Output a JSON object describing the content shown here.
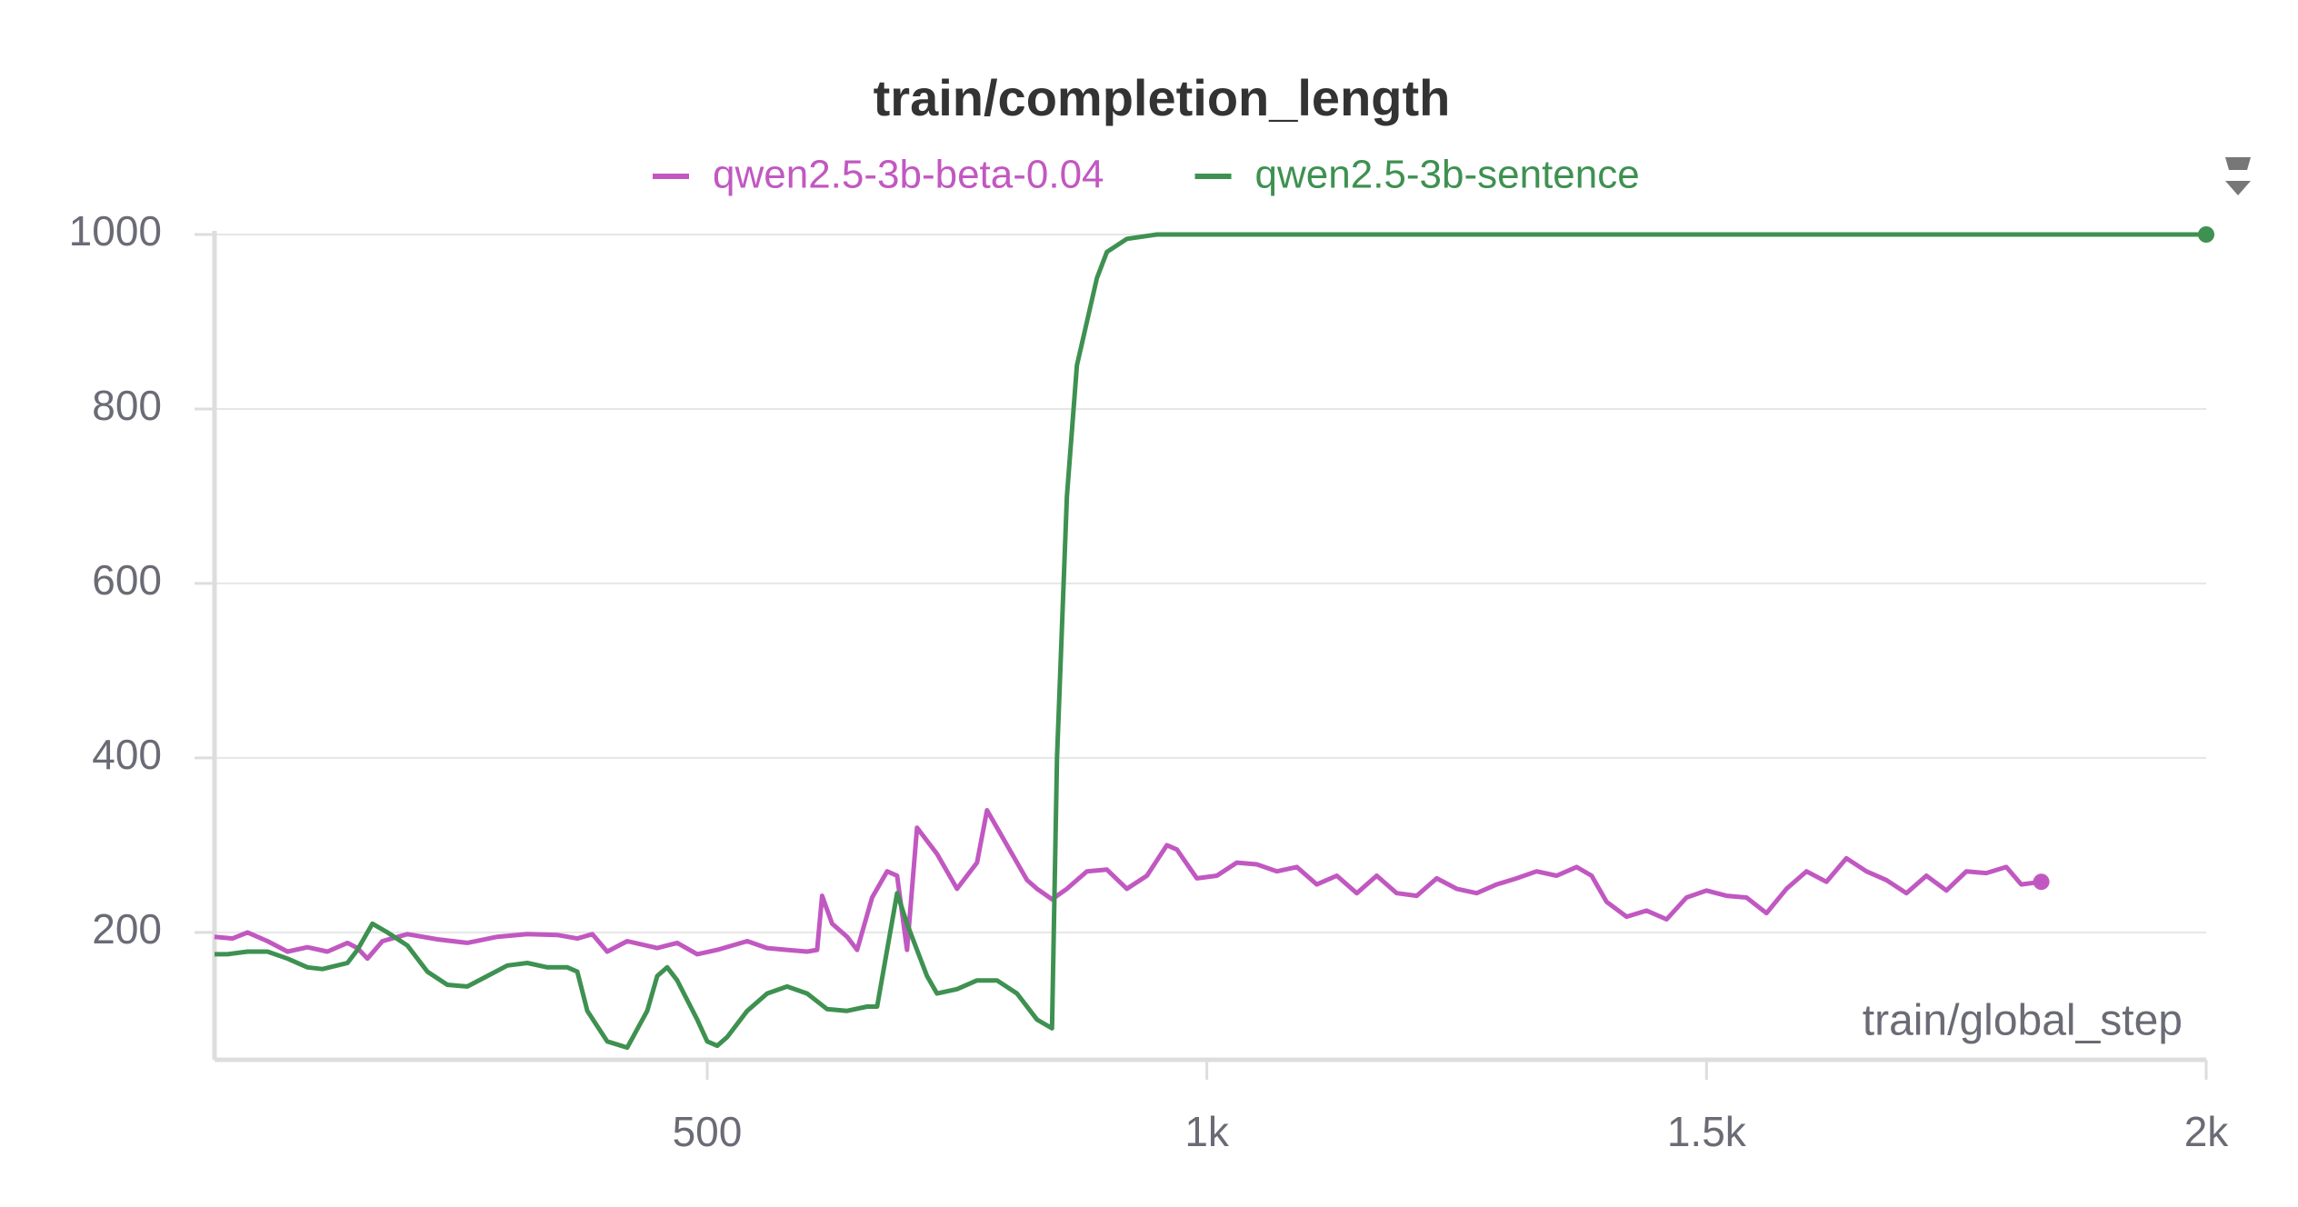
{
  "chart_data": {
    "type": "line",
    "title": "train/completion_length",
    "x_label": "train/global_step",
    "xlim": [
      7,
      2000
    ],
    "ylim": [
      54,
      1000
    ],
    "xticks": [
      500,
      {
        "value": 1000,
        "label": "1k"
      },
      {
        "value": 1500,
        "label": "1.5k"
      },
      {
        "value": 2000,
        "label": "2k"
      }
    ],
    "yticks": [
      200,
      400,
      600,
      800,
      1000
    ],
    "grid": true,
    "series": [
      {
        "name": "qwen2.5-3b-beta-0.04",
        "color": "#c158c1",
        "x": [
          7,
          25,
          40,
          60,
          80,
          100,
          120,
          140,
          150,
          160,
          175,
          200,
          230,
          260,
          290,
          320,
          350,
          370,
          385,
          400,
          420,
          450,
          470,
          490,
          510,
          540,
          560,
          580,
          600,
          610,
          615,
          625,
          640,
          650,
          665,
          680,
          690,
          700,
          710,
          730,
          750,
          770,
          780,
          800,
          820,
          830,
          845,
          860,
          880,
          900,
          920,
          940,
          960,
          970,
          990,
          1010,
          1030,
          1050,
          1070,
          1090,
          1110,
          1130,
          1150,
          1170,
          1190,
          1210,
          1230,
          1250,
          1270,
          1290,
          1310,
          1330,
          1350,
          1370,
          1385,
          1400,
          1420,
          1440,
          1460,
          1480,
          1500,
          1520,
          1540,
          1560,
          1580,
          1600,
          1620,
          1640,
          1660,
          1680,
          1700,
          1720,
          1740,
          1760,
          1780,
          1800,
          1815,
          1835
        ],
        "values": [
          195,
          193,
          200,
          190,
          178,
          183,
          178,
          188,
          182,
          170,
          190,
          198,
          192,
          188,
          195,
          198,
          197,
          193,
          198,
          178,
          190,
          182,
          188,
          175,
          180,
          190,
          182,
          180,
          178,
          180,
          242,
          210,
          195,
          180,
          240,
          270,
          265,
          180,
          320,
          290,
          250,
          280,
          340,
          300,
          260,
          250,
          238,
          250,
          270,
          272,
          250,
          265,
          300,
          295,
          262,
          265,
          280,
          278,
          270,
          275,
          255,
          265,
          245,
          265,
          245,
          242,
          262,
          250,
          245,
          255,
          262,
          270,
          265,
          275,
          265,
          235,
          218,
          225,
          215,
          240,
          248,
          242,
          240,
          222,
          250,
          270,
          258,
          285,
          270,
          260,
          245,
          265,
          248,
          270,
          268,
          275,
          255,
          258
        ]
      },
      {
        "name": "qwen2.5-3b-sentence",
        "color": "#3e9151",
        "x": [
          7,
          20,
          40,
          60,
          80,
          100,
          115,
          140,
          150,
          165,
          180,
          200,
          220,
          240,
          260,
          280,
          300,
          320,
          340,
          360,
          370,
          380,
          400,
          420,
          440,
          450,
          460,
          470,
          490,
          500,
          510,
          520,
          540,
          560,
          580,
          600,
          620,
          640,
          660,
          670,
          680,
          690,
          700,
          720,
          730,
          750,
          770,
          790,
          810,
          830,
          845,
          850,
          860,
          870,
          880,
          890,
          900,
          920,
          950,
          1000,
          1500,
          2000
        ],
        "values": [
          175,
          175,
          178,
          178,
          170,
          160,
          158,
          165,
          180,
          210,
          200,
          185,
          155,
          140,
          138,
          150,
          162,
          165,
          160,
          160,
          155,
          110,
          75,
          68,
          110,
          150,
          160,
          145,
          100,
          75,
          70,
          80,
          110,
          130,
          138,
          130,
          112,
          110,
          115,
          115,
          180,
          245,
          210,
          150,
          130,
          135,
          145,
          145,
          130,
          100,
          90,
          400,
          700,
          850,
          900,
          950,
          980,
          995,
          1000,
          1000,
          1000,
          1000
        ]
      }
    ]
  }
}
